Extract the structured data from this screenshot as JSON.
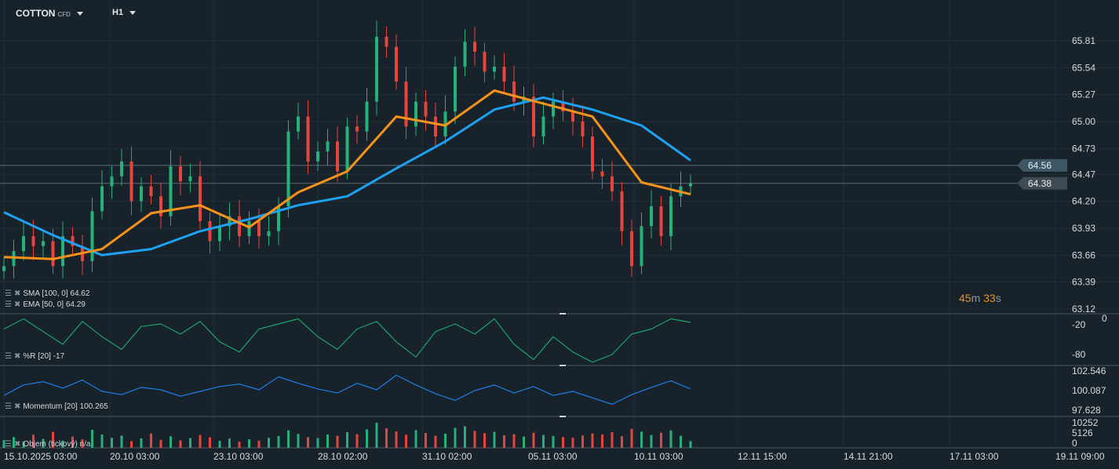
{
  "header": {
    "symbol": "COTTON",
    "symbol_type": "CFD",
    "timeframe": "H1"
  },
  "countdown": {
    "minutes": "45",
    "m": "m",
    "seconds": "33",
    "s": "s"
  },
  "colors": {
    "background": "#18222b",
    "up": "#26b07a",
    "down": "#e5453b",
    "ema": "#f7931a",
    "sma": "#1ea1f2",
    "williams": "#1aa36a",
    "momentum": "#1e7ee6"
  },
  "legend": {
    "sma": "SMA [100, 0] 64.62",
    "ema": "EMA [50, 0] 64.29",
    "williams": "%R [20] -17",
    "momentum": "Momentum  [20] 100.265",
    "volume": "Objem  (tickový)  n/a"
  },
  "chart_data": {
    "type": "candlestick",
    "price_axis": {
      "ticks": [
        "65.81",
        "65.54",
        "65.27",
        "65.00",
        "64.73",
        "64.47",
        "64.20",
        "63.93",
        "63.66",
        "63.39",
        "63.12"
      ],
      "range": [
        63.12,
        65.81
      ]
    },
    "price_labels": [
      {
        "value": "64.56",
        "kind": "ask"
      },
      {
        "value": "64.38",
        "kind": "bid"
      }
    ],
    "x_ticks": [
      "15.10.2025  03:00",
      "20.10  03:00",
      "23.10  03:00",
      "28.10  02:00",
      "31.10  02:00",
      "05.11  03:00",
      "10.11  03:00",
      "12.11  15:00",
      "14.11  21:00",
      "17.11  03:00",
      "19.11  09:00"
    ],
    "close": [
      63.55,
      63.7,
      63.85,
      63.75,
      63.8,
      63.55,
      63.85,
      63.75,
      63.6,
      64.1,
      64.35,
      64.45,
      64.6,
      64.2,
      64.35,
      64.25,
      64.05,
      64.55,
      64.4,
      64.45,
      64.0,
      63.8,
      63.95,
      64.05,
      63.85,
      64.0,
      63.85,
      63.9,
      64.15,
      64.9,
      65.05,
      64.6,
      64.7,
      64.8,
      64.5,
      64.95,
      64.9,
      65.2,
      65.85,
      65.75,
      65.4,
      64.95,
      65.2,
      65.05,
      64.85,
      65.1,
      65.55,
      65.8,
      65.7,
      65.5,
      65.55,
      65.4,
      65.2,
      65.25,
      64.85,
      65.05,
      65.2,
      65.1,
      65.0,
      64.85,
      64.5,
      64.45,
      64.3,
      63.9,
      63.55,
      63.95,
      64.15,
      63.85,
      64.25,
      64.35,
      64.38
    ],
    "ema_50": [
      63.64,
      63.62,
      63.72,
      64.08,
      64.16,
      63.94,
      64.29,
      64.5,
      65.05,
      64.96,
      65.31,
      65.18,
      65.05,
      64.39,
      64.27
    ],
    "sma_100": [
      64.09,
      63.86,
      63.66,
      63.72,
      63.9,
      64.02,
      64.16,
      64.25,
      64.53,
      64.8,
      65.12,
      65.24,
      65.12,
      64.96,
      64.61
    ],
    "williams_r": {
      "ticks": [
        "0",
        "-20",
        "-80"
      ],
      "range": [
        -100,
        0
      ],
      "values": [
        -30,
        -10,
        -35,
        -60,
        -15,
        -45,
        -70,
        -25,
        -20,
        -40,
        -15,
        -55,
        -75,
        -30,
        -20,
        -10,
        -45,
        -70,
        -30,
        -15,
        -55,
        -85,
        -35,
        -20,
        -40,
        -10,
        -60,
        -90,
        -45,
        -75,
        -95,
        -80,
        -40,
        -30,
        -10,
        -17
      ]
    },
    "momentum": {
      "ticks": [
        "102.546",
        "100.087",
        "97.628"
      ],
      "range": [
        97.0,
        103.2
      ],
      "values": [
        99.5,
        100.8,
        101.2,
        100.4,
        101.4,
        100.0,
        99.6,
        100.5,
        100.2,
        99.4,
        100.0,
        100.6,
        100.9,
        100.2,
        101.8,
        101.0,
        100.3,
        99.8,
        101.0,
        100.2,
        102.0,
        100.8,
        99.7,
        98.9,
        100.1,
        100.8,
        99.8,
        100.6,
        99.5,
        100.0,
        99.2,
        98.4,
        99.6,
        100.5,
        101.3,
        100.3
      ]
    },
    "volume": {
      "ticks": [
        "10252",
        "5126",
        "0"
      ],
      "range": [
        0,
        11000
      ],
      "values": [
        3000,
        4200,
        2500,
        5100,
        3500,
        6200,
        2800,
        4400,
        3300,
        7000,
        5200,
        3900,
        4800,
        2600,
        3700,
        5600,
        3100,
        4500,
        2900,
        3800,
        5000,
        4100,
        2700,
        3600,
        2400,
        3300,
        2800,
        3900,
        4600,
        6800,
        5400,
        4200,
        3800,
        5200,
        4700,
        6100,
        5300,
        7200,
        9800,
        7600,
        6400,
        5100,
        6900,
        5800,
        4700,
        5500,
        7800,
        8400,
        6600,
        5700,
        6200,
        4900,
        5300,
        4400,
        5900,
        5000,
        4600,
        4200,
        3900,
        4800,
        5600,
        5200,
        6100,
        4500,
        7400,
        6300,
        5000,
        5900,
        6800,
        4700,
        2600
      ]
    }
  }
}
